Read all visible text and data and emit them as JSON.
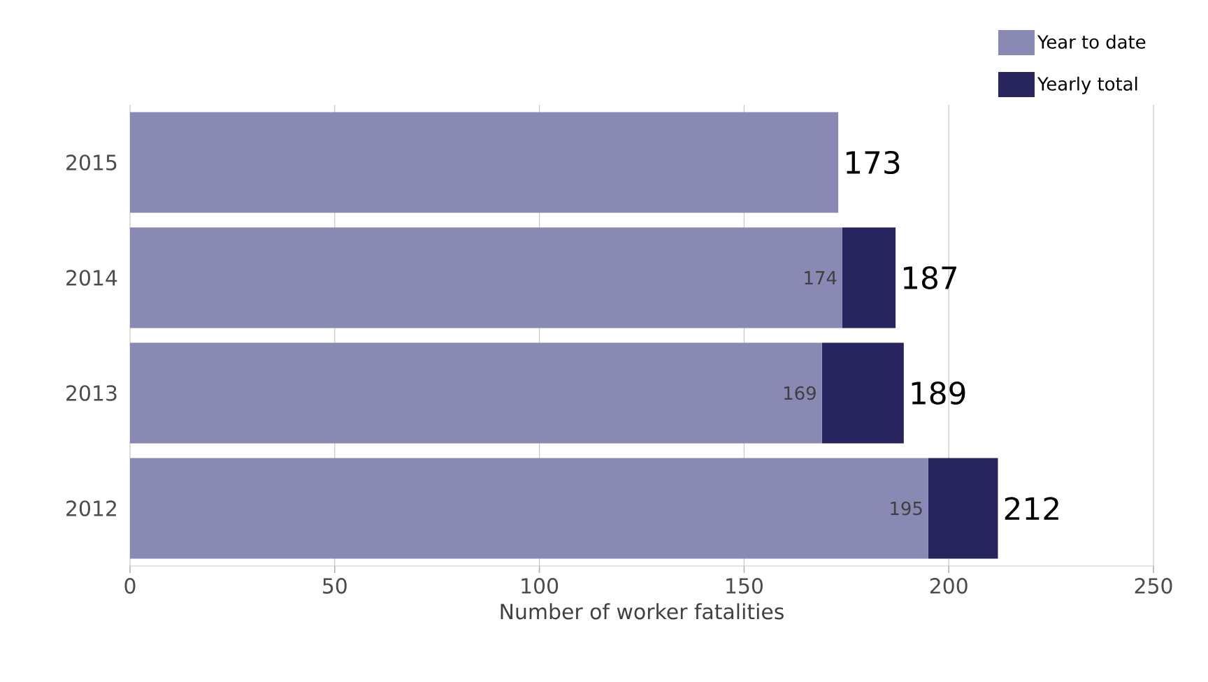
{
  "chart_data": {
    "type": "bar",
    "orientation": "horizontal",
    "stacked": true,
    "xlabel": "Number of worker fatalities",
    "categories": [
      "2015",
      "2014",
      "2013",
      "2012"
    ],
    "series": [
      {
        "name": "Year to date",
        "color": "#8a89b4",
        "values": [
          173,
          174,
          169,
          195
        ],
        "value_labels": [
          null,
          "174",
          "169",
          "195"
        ]
      },
      {
        "name": "Yearly total",
        "color": "#27245e",
        "values": [
          null,
          13,
          20,
          17
        ]
      }
    ],
    "totals": [
      "173",
      "187",
      "189",
      "212"
    ],
    "xlim": [
      0,
      250
    ],
    "xticks": [
      0,
      50,
      100,
      150,
      200,
      250
    ],
    "grid": "x",
    "legend": "top right"
  }
}
